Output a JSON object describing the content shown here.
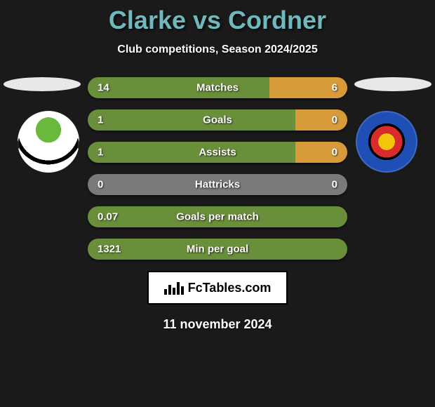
{
  "title_color": "#6fb8bb",
  "title": "Clarke vs Cordner",
  "subtitle": "Club competitions, Season 2024/2025",
  "brand": "FcTables.com",
  "date": "11 november 2024",
  "colors": {
    "bar_left": "#6a8f3a",
    "bar_right": "#d89b3a",
    "bar_neutral": "#7a7a7a",
    "text": "#ffffff"
  },
  "bars": [
    {
      "label": "Matches",
      "left_val": "14",
      "right_val": "6",
      "left_pct": 70,
      "right_pct": 30
    },
    {
      "label": "Goals",
      "left_val": "1",
      "right_val": "0",
      "left_pct": 80,
      "right_pct": 20
    },
    {
      "label": "Assists",
      "left_val": "1",
      "right_val": "0",
      "left_pct": 80,
      "right_pct": 20
    },
    {
      "label": "Hattricks",
      "left_val": "0",
      "right_val": "0",
      "left_pct": 50,
      "right_pct": 50,
      "neutral": true
    },
    {
      "label": "Goals per match",
      "left_val": "0.07",
      "right_val": "",
      "left_pct": 100,
      "right_pct": 0
    },
    {
      "label": "Min per goal",
      "left_val": "1321",
      "right_val": "",
      "left_pct": 100,
      "right_pct": 0
    }
  ]
}
